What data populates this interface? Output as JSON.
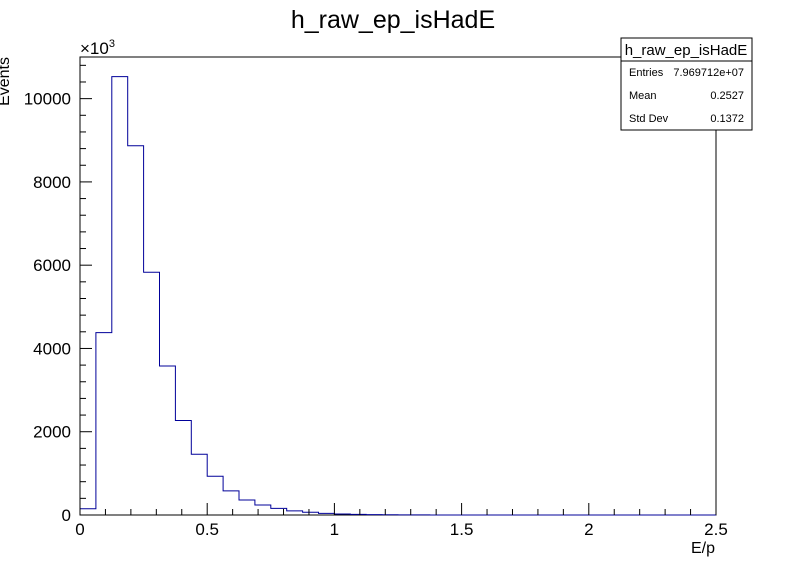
{
  "chart_data": {
    "type": "histogram",
    "title": "h_raw_ep_isHadE",
    "xlabel": "E/p",
    "ylabel": "Events",
    "y_multiplier": "×10",
    "y_multiplier_exponent": "3",
    "xlim": [
      0,
      2.5
    ],
    "ylim": [
      0,
      11000
    ],
    "x_ticks": [
      0,
      0.5,
      1,
      1.5,
      2,
      2.5
    ],
    "x_tick_labels": [
      "0",
      "0.5",
      "1",
      "1.5",
      "2",
      "2.5"
    ],
    "y_ticks": [
      0,
      2000,
      4000,
      6000,
      8000,
      10000
    ],
    "y_tick_labels": [
      "0",
      "2000",
      "4000",
      "6000",
      "8000",
      "10000"
    ],
    "bin_width": 0.0625,
    "bin_start": 0,
    "values": [
      150,
      4380,
      10530,
      8870,
      5830,
      3580,
      2270,
      1460,
      930,
      580,
      360,
      240,
      160,
      100,
      65,
      40,
      25,
      15,
      8,
      5,
      3,
      2,
      1,
      1,
      0,
      0,
      0,
      0,
      0,
      0,
      0,
      0,
      0,
      0,
      0,
      0,
      0,
      0,
      0,
      0
    ],
    "line_color": "#000099",
    "stats": {
      "name": "h_raw_ep_isHadE",
      "entries_label": "Entries",
      "entries_value": "7.969712e+07",
      "mean_label": "Mean",
      "mean_value": "0.2527",
      "std_label": "Std Dev",
      "std_value": "0.1372"
    }
  }
}
